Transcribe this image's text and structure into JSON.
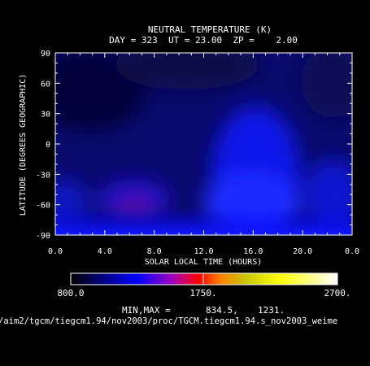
{
  "chart_data": {
    "type": "heatmap",
    "title": "NEUTRAL TEMPERATURE (K)",
    "subtitle": "DAY = 323  UT = 23.00  ZP =    2.00",
    "xlabel": "SOLAR LOCAL TIME (HOURS)",
    "ylabel": "LATITUDE (DEGREES GEOGRAPHIC)",
    "xlim": [
      0,
      24
    ],
    "ylim": [
      -90,
      90
    ],
    "x_ticks": [
      "0.0",
      "4.0",
      "8.0",
      "12.0",
      "16.0",
      "20.0",
      "0.0"
    ],
    "y_ticks": [
      "90",
      "60",
      "30",
      "0",
      "-30",
      "-60",
      "-90"
    ],
    "colorbar": {
      "min": 800,
      "max": 2700,
      "tick_labels": [
        "800.0",
        "1750.",
        "2700."
      ],
      "colors": [
        "#000000",
        "#000080",
        "#0000ff",
        "#a000c0",
        "#ff0000",
        "#ff8000",
        "#c8c800",
        "#ffff00",
        "#ffffff"
      ]
    },
    "minmax_label": "MIN,MAX =",
    "min_value": "834.5,",
    "max_value": "1231.",
    "file_path": "/aim2/tgcm/tiegcm1.94/nov2003/proc/TGCM.tiegcm1.94.s_nov2003_weime",
    "grid": false
  }
}
